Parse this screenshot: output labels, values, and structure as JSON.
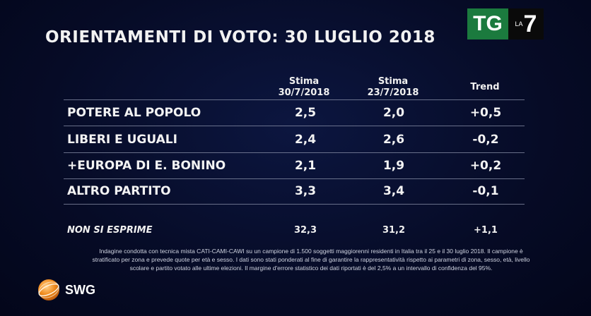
{
  "title": "ORIENTAMENTI DI VOTO: 30 LUGLIO 2018",
  "logo": {
    "tg": "TG",
    "la": "LA",
    "seven": "7"
  },
  "columns": {
    "est_now": [
      "Stima",
      "30/7/2018"
    ],
    "est_prev": [
      "Stima",
      "23/7/2018"
    ],
    "trend": "Trend"
  },
  "chart_data": {
    "type": "table",
    "title": "ORIENTAMENTI DI VOTO: 30 LUGLIO 2018",
    "columns": [
      "Stima 30/7/2018",
      "Stima 23/7/2018",
      "Trend"
    ],
    "rows": [
      {
        "party": "POTERE AL POPOLO",
        "est_now": "2,5",
        "est_prev": "2,0",
        "trend": "+0,5"
      },
      {
        "party": "LIBERI E UGUALI",
        "est_now": "2,4",
        "est_prev": "2,6",
        "trend": "-0,2"
      },
      {
        "party": "+EUROPA DI E. BONINO",
        "est_now": "2,1",
        "est_prev": "1,9",
        "trend": "+0,2"
      },
      {
        "party": "ALTRO PARTITO",
        "est_now": "3,3",
        "est_prev": "3,4",
        "trend": "-0,1"
      }
    ],
    "no_response": {
      "label": "NON SI ESPRIME",
      "est_now": "32,3",
      "est_prev": "31,2",
      "trend": "+1,1"
    }
  },
  "note": [
    "Indagine condotta con tecnica mista CATI-CAMI-CAWI su un campione di 1.500 soggetti maggiorenni residenti in Italia tra il 25 e il 30 luglio 2018. Il campione è",
    "stratificato per zona e prevede quote per età e sesso. I dati sono stati ponderati al fine di garantire la rappresentatività rispetto ai parametri di zona, sesso, età, livello",
    "scolare e partito votato alle ultime elezioni. Il margine d'errore statistico dei dati riportati è del 2,5% a un intervallo di confidenza del 95%."
  ],
  "brand": "SWG",
  "colors": {
    "tg_green": "#1b7a3e",
    "background": "#060b26",
    "swg_orange": "#f08a1c"
  }
}
